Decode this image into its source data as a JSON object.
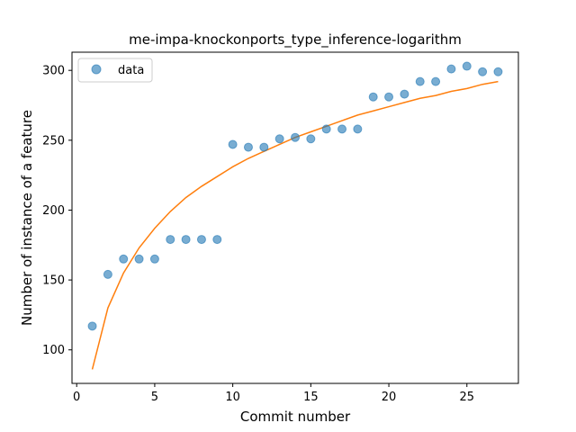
{
  "chart_data": {
    "type": "scatter",
    "title": "me-impa-knockonports_type_inference-logarithm",
    "xlabel": "Commit number",
    "ylabel": "Number of instance of a feature",
    "xlim": [
      -0.3,
      28.3
    ],
    "ylim": [
      76,
      313
    ],
    "xticks": [
      0,
      5,
      10,
      15,
      20,
      25
    ],
    "yticks": [
      100,
      150,
      200,
      250,
      300
    ],
    "grid": false,
    "legend": {
      "placement": "top-left",
      "entries": [
        "data"
      ]
    },
    "series": [
      {
        "name": "data",
        "kind": "scatter",
        "color": "#1f77b4",
        "x": [
          1,
          2,
          3,
          4,
          5,
          6,
          7,
          8,
          9,
          10,
          11,
          12,
          13,
          14,
          15,
          16,
          17,
          18,
          19,
          20,
          21,
          22,
          23,
          24,
          25,
          26,
          27
        ],
        "y": [
          117,
          154,
          165,
          165,
          165,
          179,
          179,
          179,
          179,
          247,
          245,
          245,
          251,
          252,
          251,
          258,
          258,
          258,
          281,
          281,
          283,
          292,
          292,
          301,
          303,
          299,
          299
        ]
      },
      {
        "kind": "line",
        "color": "#ff7f0e",
        "x": [
          1,
          2,
          3,
          4,
          5,
          6,
          7,
          8,
          9,
          10,
          11,
          12,
          13,
          14,
          15,
          16,
          17,
          18,
          19,
          20,
          21,
          22,
          23,
          24,
          25,
          26,
          27
        ],
        "y": [
          86,
          130,
          155,
          173,
          187,
          199,
          209,
          217,
          224,
          231,
          237,
          242,
          247,
          252,
          256,
          260,
          264,
          268,
          271,
          274,
          277,
          280,
          282,
          285,
          287,
          290,
          292
        ]
      }
    ]
  }
}
